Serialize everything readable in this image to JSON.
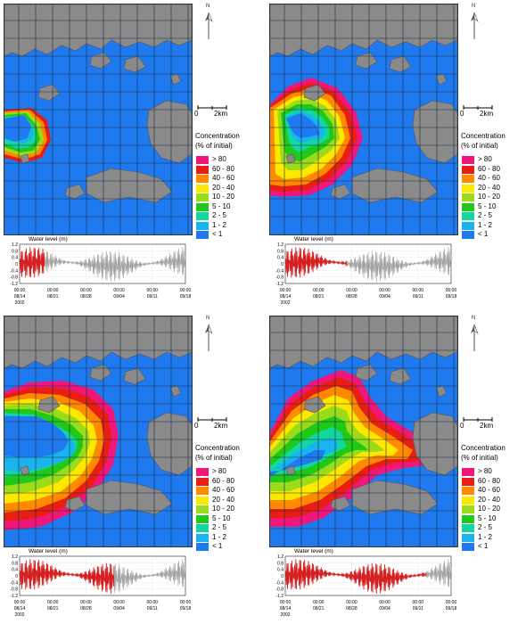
{
  "scale_bar": {
    "start": "0",
    "end": "2km"
  },
  "north_label": "N",
  "legend": {
    "title_line1": "Concentration",
    "title_line2": "(% of initial)",
    "items": [
      {
        "label": "> 80",
        "color": "#f0167a"
      },
      {
        "label": "60 - 80",
        "color": "#e81e12"
      },
      {
        "label": "40 - 60",
        "color": "#ff8a00"
      },
      {
        "label": "20 - 40",
        "color": "#ffe800"
      },
      {
        "label": "10 - 20",
        "color": "#9adb1a"
      },
      {
        "label": "5 - 10",
        "color": "#20c81a"
      },
      {
        "label": "2 - 5",
        "color": "#14d6a0"
      },
      {
        "label": "1 - 2",
        "color": "#19b4ee"
      },
      {
        "label": "< 1",
        "color": "#1f7aef"
      }
    ]
  },
  "chart_data": {
    "type": "line",
    "title": "Water level (m)",
    "y_ticks": [
      "1.2",
      "0.8",
      "0.4",
      "0",
      "-0.4",
      "-0.8",
      "-1.2"
    ],
    "ylim": [
      -1.2,
      1.2
    ],
    "x_tick_times": [
      "00:00",
      "00:00",
      "00:00",
      "00:00",
      "00:00",
      "00:00"
    ],
    "x_tick_dates": [
      "08/14",
      "08/21",
      "08/28",
      "09/04",
      "09/11",
      "09/18"
    ],
    "start_year": "2002",
    "colors": {
      "elapsed": "#d42020",
      "remaining": "#9a9a9a"
    }
  },
  "panels": [
    {
      "name": "panel-top-left",
      "elapsed_fraction": 0.15
    },
    {
      "name": "panel-top-right",
      "elapsed_fraction": 0.37
    },
    {
      "name": "panel-bottom-left",
      "elapsed_fraction": 0.57
    },
    {
      "name": "panel-bottom-right",
      "elapsed_fraction": 0.85
    }
  ],
  "colors": {
    "water": "#1f7aef",
    "land": "#8a8a8a",
    "grid": "#1a2a40"
  }
}
